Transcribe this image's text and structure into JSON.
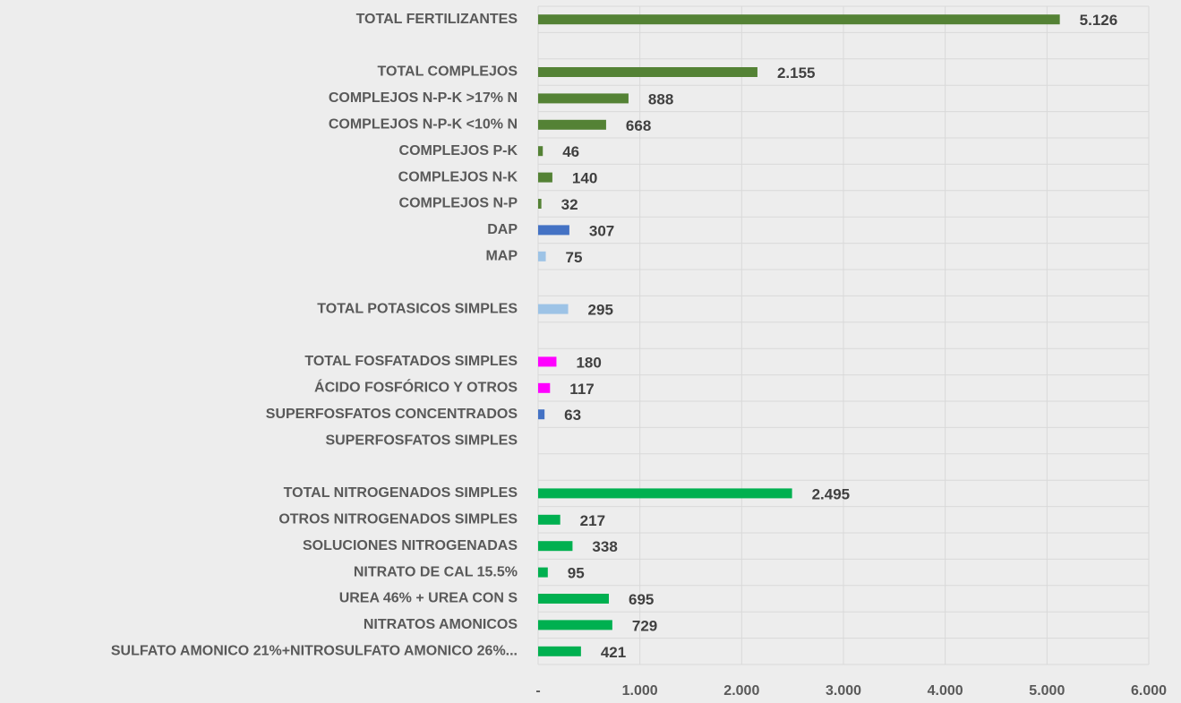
{
  "chart_data": {
    "type": "bar",
    "orientation": "horizontal",
    "categories": [
      "TOTAL FERTILIZANTES",
      null,
      "TOTAL COMPLEJOS",
      "COMPLEJOS N-P-K >17% N",
      "COMPLEJOS N-P-K <10% N",
      "COMPLEJOS P-K",
      "COMPLEJOS N-K",
      "COMPLEJOS N-P",
      "DAP",
      "MAP",
      null,
      "TOTAL POTASICOS SIMPLES",
      null,
      "TOTAL FOSFATADOS SIMPLES",
      "ÁCIDO FOSFÓRICO Y OTROS",
      "SUPERFOSFATOS CONCENTRADOS",
      "SUPERFOSFATOS SIMPLES",
      null,
      "TOTAL NITROGENADOS SIMPLES",
      "OTROS NITROGENADOS SIMPLES",
      "SOLUCIONES NITROGENADAS",
      "NITRATO DE CAL 15.5%",
      "UREA 46% + UREA CON S",
      "NITRATOS AMONICOS",
      "SULFATO AMONICO 21%+NITROSULFATO AMONICO 26%..."
    ],
    "values": [
      5126,
      null,
      2155,
      888,
      668,
      46,
      140,
      32,
      307,
      75,
      null,
      295,
      null,
      180,
      117,
      63,
      null,
      null,
      2495,
      217,
      338,
      95,
      695,
      729,
      421
    ],
    "value_labels": [
      "5.126",
      null,
      "2.155",
      null,
      null,
      null,
      null,
      null,
      null,
      null,
      null,
      null,
      null,
      null,
      null,
      null,
      null,
      null,
      "2.495",
      null,
      null,
      null,
      null,
      null,
      null
    ],
    "colors": [
      "#548235",
      null,
      "#548235",
      "#548235",
      "#548235",
      "#548235",
      "#548235",
      "#548235",
      "#4472c4",
      "#9dc3e6",
      null,
      "#9dc3e6",
      null,
      "#ff00ff",
      "#ff00ff",
      "#4472c4",
      null,
      null,
      "#00b050",
      "#00b050",
      "#00b050",
      "#00b050",
      "#00b050",
      "#00b050",
      "#00b050"
    ],
    "xlim": [
      0,
      6000
    ],
    "xticks": [
      {
        "value": 0,
        "label": "-"
      },
      {
        "value": 1000,
        "label": "1.000"
      },
      {
        "value": 2000,
        "label": "2.000"
      },
      {
        "value": 3000,
        "label": "3.000"
      },
      {
        "value": 4000,
        "label": "4.000"
      },
      {
        "value": 5000,
        "label": "5.000"
      },
      {
        "value": 6000,
        "label": "6.000"
      }
    ],
    "grid": true
  }
}
